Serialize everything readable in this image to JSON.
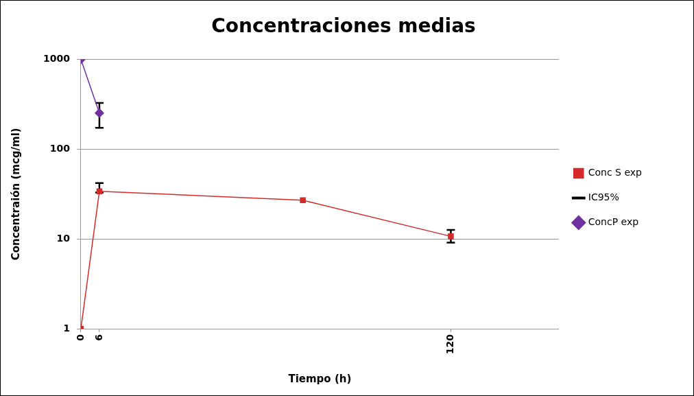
{
  "chart_data": {
    "type": "line",
    "title": "Concentraciones medias",
    "xlabel": "Tiempo (h)",
    "ylabel": "Concentraión (mcg/ml)",
    "xlim": [
      0,
      155
    ],
    "xticks": [
      0,
      6,
      120
    ],
    "ylim": [
      1,
      1000
    ],
    "yticks": [
      1,
      10,
      100,
      1000
    ],
    "log": "y",
    "grid": "y",
    "legend": "right",
    "annotations": [
      "IC95%"
    ],
    "series": [
      {
        "name": "Conc S exp",
        "type": "line",
        "color": "#d42a2a",
        "marker": "square",
        "x": [
          0,
          6,
          72,
          120
        ],
        "values": [
          1,
          34,
          27,
          10.7
        ],
        "errors": [
          null,
          [
            33,
            42
          ],
          null,
          [
            9.1,
            12.6
          ]
        ]
      },
      {
        "name": "ConcP exp",
        "type": "line",
        "color": "#7030a0",
        "marker": "diamond",
        "x": [
          0,
          6
        ],
        "values": [
          1000,
          253
        ],
        "errors": [
          null,
          [
            173,
            328
          ]
        ]
      }
    ]
  }
}
